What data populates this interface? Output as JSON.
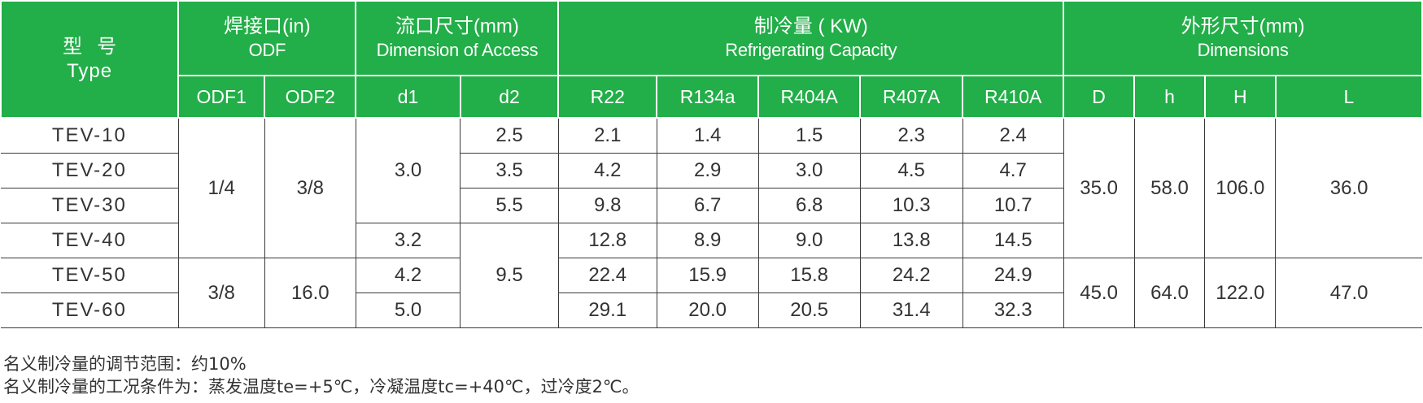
{
  "header": {
    "type_zh": "型号",
    "type_en": "Type",
    "groups": [
      {
        "zh": "焊接口(in)",
        "en": "ODF"
      },
      {
        "zh": "流口尺寸(mm)",
        "en": "Dimension of Access"
      },
      {
        "zh": "制冷量 ( KW)",
        "en": "Refrigerating Capacity"
      },
      {
        "zh": "外形尺寸(mm)",
        "en": "Dimensions"
      }
    ],
    "sub": [
      "ODF1",
      "ODF2",
      "d1",
      "d2",
      "R22",
      "R134a",
      "R404A",
      "R407A",
      "R410A",
      "D",
      "h",
      "H",
      "L"
    ]
  },
  "rows": [
    {
      "model": "TEV-10",
      "d2": "2.5",
      "r22": "2.1",
      "r134a": "1.4",
      "r404a": "1.5",
      "r407a": "2.3",
      "r410a": "2.4"
    },
    {
      "model": "TEV-20",
      "d2": "3.5",
      "r22": "4.2",
      "r134a": "2.9",
      "r404a": "3.0",
      "r407a": "4.5",
      "r410a": "4.7"
    },
    {
      "model": "TEV-30",
      "d2": "5.5",
      "r22": "9.8",
      "r134a": "6.7",
      "r404a": "6.8",
      "r407a": "10.3",
      "r410a": "10.7"
    },
    {
      "model": "TEV-40",
      "d1": "3.2",
      "r22": "12.8",
      "r134a": "8.9",
      "r404a": "9.0",
      "r407a": "13.8",
      "r410a": "14.5"
    },
    {
      "model": "TEV-50",
      "d1": "4.2",
      "r22": "22.4",
      "r134a": "15.9",
      "r404a": "15.8",
      "r407a": "24.2",
      "r410a": "24.9"
    },
    {
      "model": "TEV-60",
      "d1": "5.0",
      "r22": "29.1",
      "r134a": "20.0",
      "r404a": "20.5",
      "r407a": "31.4",
      "r410a": "32.3"
    }
  ],
  "merged": {
    "odf1_a": "1/4",
    "odf2_a": "3/8",
    "d1_a": "3.0",
    "d2_b": "9.5",
    "odf1_b": "3/8",
    "odf2_b": "16.0",
    "dim_a": {
      "D": "35.0",
      "h": "58.0",
      "H": "106.0",
      "L": "36.0"
    },
    "dim_b": {
      "D": "45.0",
      "h": "64.0",
      "H": "122.0",
      "L": "47.0"
    }
  },
  "notes": [
    "名义制冷量的调节范围：约10%",
    "名义制冷量的工况条件为：蒸发温度te=+5℃，冷凝温度tc=+40℃，过冷度2℃。"
  ]
}
